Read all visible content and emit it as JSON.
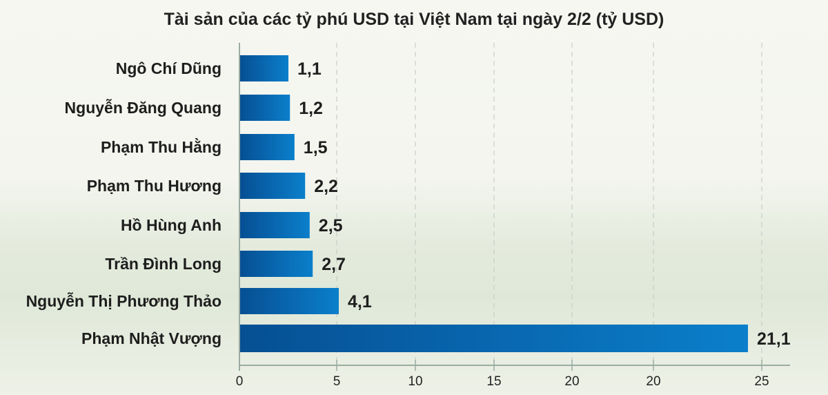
{
  "chart_data": {
    "type": "bar",
    "orientation": "horizontal",
    "title": "Tài sản của các tỷ phú USD tại Việt Nam tại ngày 2/2 (tỷ USD)",
    "categories": [
      "Ngô Chí Dũng",
      "Nguyễn Đăng Quang",
      "Phạm Thu Hằng",
      "Phạm Thu Hương",
      "Hồ Hùng Anh",
      "Trần Đình Long",
      "Nguyễn Thị Phương Thảo",
      "Phạm Nhật Vượng"
    ],
    "values": [
      1.1,
      1.2,
      1.5,
      2.2,
      2.5,
      2.7,
      4.1,
      21.1
    ],
    "value_labels": [
      "1,1",
      "1,2",
      "1,5",
      "2,2",
      "2,5",
      "2,7",
      "4,1",
      "21,1"
    ],
    "x_tick_labels": [
      "0",
      "5",
      "10",
      "15",
      "20",
      "20",
      "25"
    ],
    "xlim": [
      0,
      25
    ],
    "grid": "vertical dashed",
    "bar_color": "#0a6cb5"
  }
}
